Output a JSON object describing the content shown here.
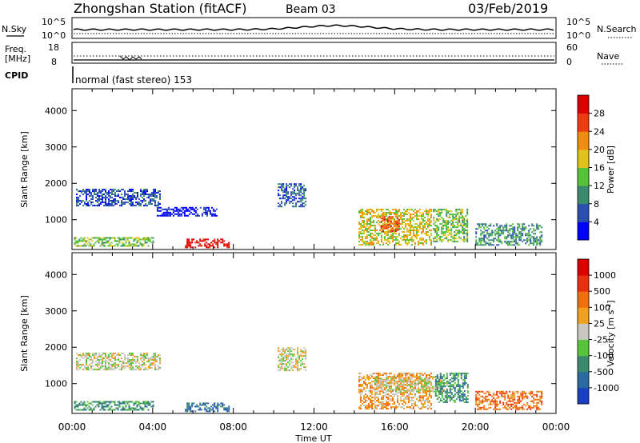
{
  "header": {
    "station": "Zhongshan Station (fitACF)",
    "beam": "Beam 03",
    "date": "03/Feb/2019"
  },
  "panels": {
    "nsky_label": "N.Sky",
    "nsearch_label": "N.Search",
    "freq_label_1": "Freq.",
    "freq_label_2": "[MHz]",
    "nave_label": "Nave",
    "cpid_label": "CPID",
    "cpid_text": "normal (fast stereo) 153",
    "nsky_ticks": [
      "10^5",
      "10^0"
    ],
    "nsearch_ticks": [
      "10^5",
      "10^0"
    ],
    "freq_ticks": [
      "18",
      "8"
    ],
    "nave_ticks": [
      "60",
      "0"
    ]
  },
  "chart_data": [
    {
      "type": "heatmap",
      "name": "power",
      "ylabel": "Slant Range [km]",
      "yticks": [
        1000,
        2000,
        3000,
        4000
      ],
      "ylim": [
        180,
        4600
      ],
      "xlabel": "Time UT",
      "xticks": [
        "00:00",
        "04:00",
        "08:00",
        "12:00",
        "16:00",
        "20:00",
        "00:00"
      ],
      "xlim": [
        0,
        24
      ],
      "colorbar": {
        "label": "Power [dB]",
        "ticks": [
          "4",
          "8",
          "12",
          "16",
          "20",
          "24",
          "28"
        ],
        "colors": [
          "#0000ff",
          "#2b4fb0",
          "#3a8a6e",
          "#55c23a",
          "#e0c21a",
          "#f08c10",
          "#ee3b10",
          "#dd0000"
        ]
      },
      "bands": [
        {
          "t0": 0.1,
          "t1": 4.0,
          "r0": 280,
          "r1": 520,
          "level": 3
        },
        {
          "t0": 5.6,
          "t1": 7.8,
          "r0": 240,
          "r1": 480,
          "level": 7
        },
        {
          "t0": 0.2,
          "t1": 4.4,
          "r0": 1400,
          "r1": 1850,
          "level": 1
        },
        {
          "t0": 4.2,
          "t1": 7.2,
          "r0": 1100,
          "r1": 1350,
          "level": 0
        },
        {
          "t0": 10.2,
          "t1": 11.6,
          "r0": 1350,
          "r1": 2000,
          "level": 1
        },
        {
          "t0": 14.2,
          "t1": 17.8,
          "r0": 300,
          "r1": 1300,
          "level": 4
        },
        {
          "t0": 15.3,
          "t1": 16.2,
          "r0": 700,
          "r1": 1100,
          "level": 6
        },
        {
          "t0": 17.9,
          "t1": 19.6,
          "r0": 400,
          "r1": 1300,
          "level": 3
        },
        {
          "t0": 20.0,
          "t1": 23.3,
          "r0": 300,
          "r1": 900,
          "level": 2
        }
      ]
    },
    {
      "type": "heatmap",
      "name": "velocity",
      "ylabel": "Slant Range [km]",
      "yticks": [
        1000,
        2000,
        3000,
        4000
      ],
      "ylim": [
        180,
        4600
      ],
      "xlabel": "Time UT",
      "xticks": [
        "00:00",
        "04:00",
        "08:00",
        "12:00",
        "16:00",
        "20:00",
        "00:00"
      ],
      "xlim": [
        0,
        24
      ],
      "colorbar": {
        "label": "Velocity [m s-1]",
        "ticks": [
          "1000",
          "500",
          "100",
          "25",
          "-25",
          "-100",
          "-500",
          "-1000"
        ],
        "colors": [
          "#1a3fc4",
          "#2b6aa0",
          "#3a8a6e",
          "#57c43c",
          "#c8c8c0",
          "#f0a020",
          "#f07010",
          "#e83010",
          "#dd0000"
        ]
      },
      "bands": [
        {
          "t0": 0.1,
          "t1": 4.0,
          "r0": 280,
          "r1": 520,
          "level": 2
        },
        {
          "t0": 5.6,
          "t1": 7.8,
          "r0": 240,
          "r1": 480,
          "level": 1
        },
        {
          "t0": 0.2,
          "t1": 4.4,
          "r0": 1400,
          "r1": 1850,
          "level": 4
        },
        {
          "t0": 10.2,
          "t1": 11.6,
          "r0": 1350,
          "r1": 2000,
          "level": 4
        },
        {
          "t0": 14.2,
          "t1": 17.8,
          "r0": 300,
          "r1": 1300,
          "level": 5
        },
        {
          "t0": 15.0,
          "t1": 18.6,
          "r0": 800,
          "r1": 1200,
          "level": 4
        },
        {
          "t0": 18.0,
          "t1": 19.6,
          "r0": 500,
          "r1": 1300,
          "level": 2
        },
        {
          "t0": 20.0,
          "t1": 23.3,
          "r0": 300,
          "r1": 800,
          "level": 6
        }
      ]
    }
  ]
}
